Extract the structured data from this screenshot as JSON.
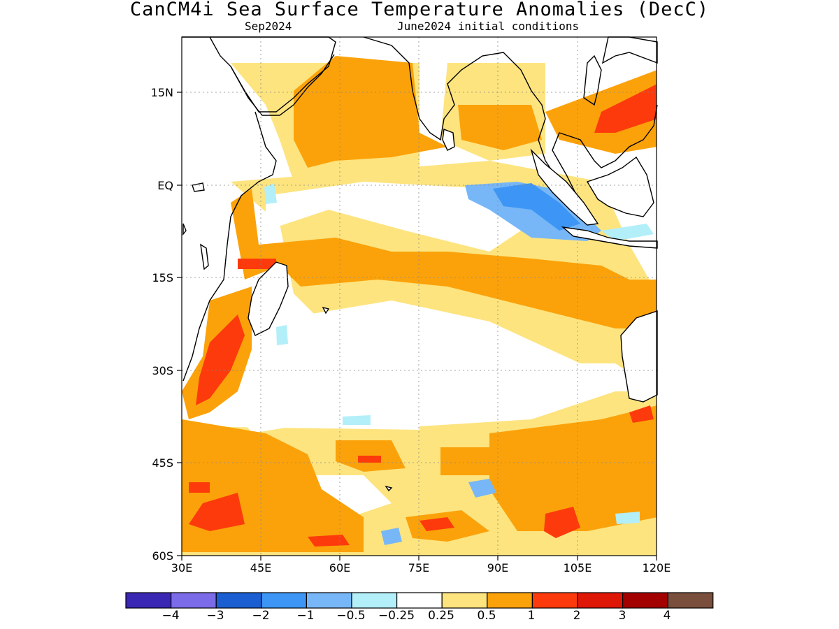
{
  "title": "CanCM4i Sea Surface Temperature Anomalies (DecC)",
  "subtitle_left": "Sep2024",
  "subtitle_right": "June2024 initial conditions",
  "lat_labels": [
    "15N",
    "EQ",
    "15S",
    "30S",
    "45S",
    "60S"
  ],
  "lon_labels": [
    "30E",
    "45E",
    "60E",
    "75E",
    "90E",
    "105E",
    "120E"
  ],
  "map_extent": {
    "lon_min": 30,
    "lon_max": 120,
    "lat_min": -60,
    "lat_max": 24
  },
  "colorbar": {
    "colors": [
      "#3a27b4",
      "#7b6be8",
      "#1a5ed1",
      "#3d96f5",
      "#77b7f7",
      "#b2eff9",
      "#ffffff",
      "#fde47f",
      "#fba20a",
      "#fd3a0c",
      "#df1707",
      "#a30000",
      "#7a4e3c"
    ],
    "labels": [
      "-4",
      "-3",
      "-2",
      "-1",
      "-0.5",
      "-0.25",
      "0.25",
      "0.5",
      "1",
      "2",
      "3",
      "4"
    ]
  }
}
